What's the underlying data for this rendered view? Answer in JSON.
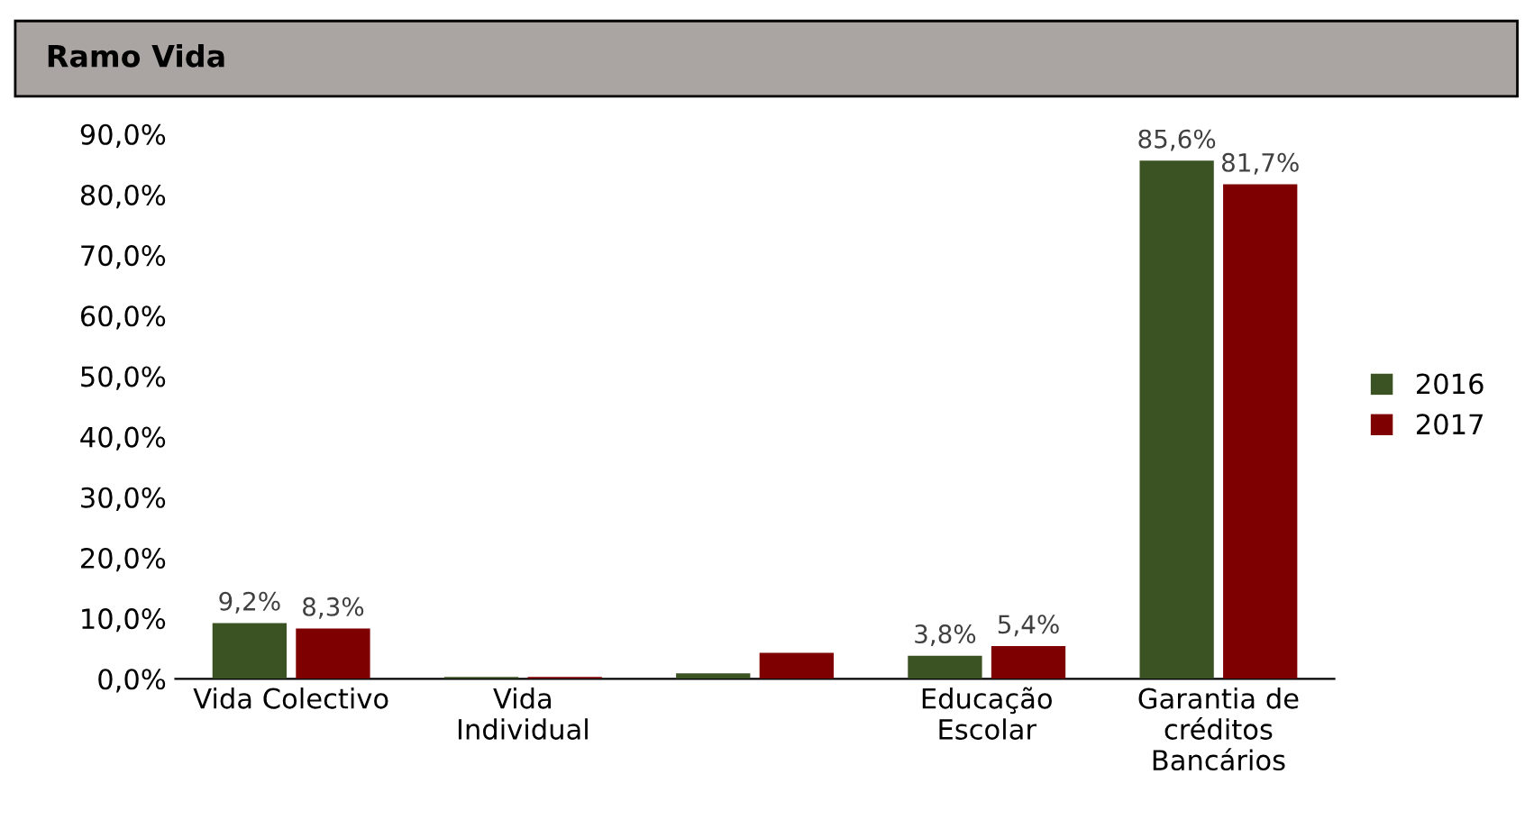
{
  "chart_data": {
    "type": "bar",
    "title": "Ramo Vida",
    "categories": [
      "Vida Colectivo",
      "Vida\nIndividual",
      null,
      "Educação\nEscolar",
      "Garantia de\ncréditos\nBancários"
    ],
    "series": [
      {
        "name": "2016",
        "color": "#3b5323",
        "values": [
          9.2,
          0.3,
          0.9,
          3.8,
          85.6
        ],
        "value_labels": [
          "9,2%",
          null,
          null,
          "3,8%",
          "85,6%"
        ]
      },
      {
        "name": "2017",
        "color": "#7f0000",
        "values": [
          8.3,
          0.3,
          4.3,
          5.4,
          81.7
        ],
        "value_labels": [
          "8,3%",
          null,
          null,
          "5,4%",
          "81,7%"
        ]
      }
    ],
    "ylim": [
      0,
      90
    ],
    "yticks": [
      {
        "value": 0,
        "label": "0,0%"
      },
      {
        "value": 10,
        "label": "10,0%"
      },
      {
        "value": 20,
        "label": "20,0%"
      },
      {
        "value": 30,
        "label": "30,0%"
      },
      {
        "value": 40,
        "label": "40,0%"
      },
      {
        "value": 50,
        "label": "50,0%"
      },
      {
        "value": 60,
        "label": "60,0%"
      },
      {
        "value": 70,
        "label": "70,0%"
      },
      {
        "value": 80,
        "label": "80,0%"
      },
      {
        "value": 90,
        "label": "90,0%"
      }
    ],
    "grid": false,
    "legend": "right"
  }
}
